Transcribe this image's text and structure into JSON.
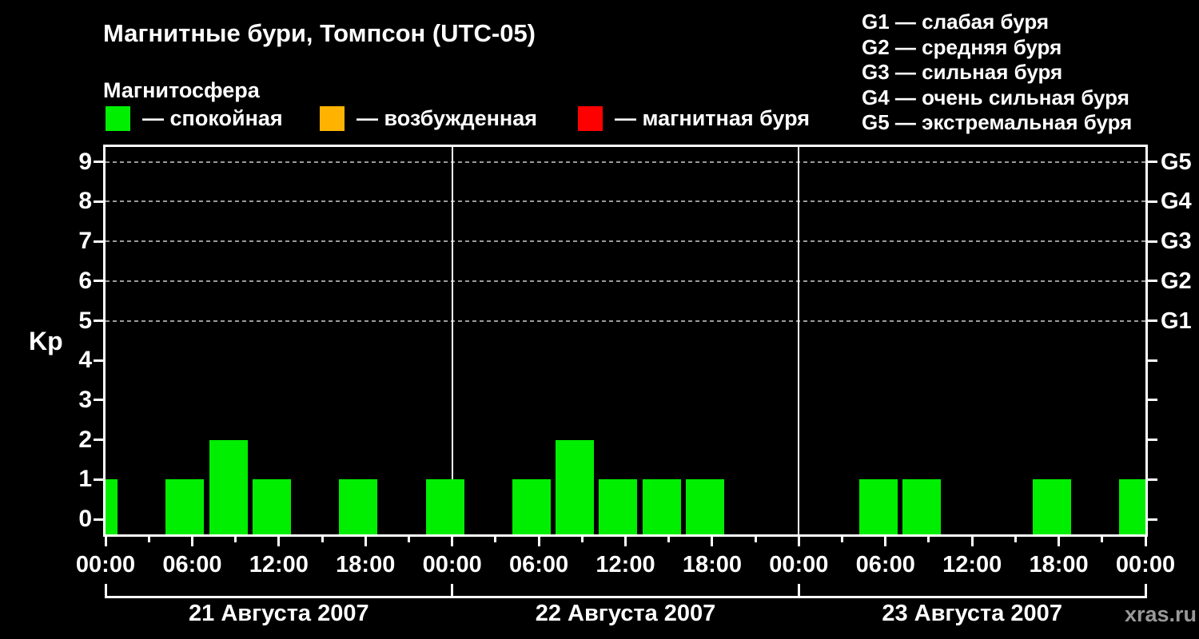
{
  "header": {
    "title": "Магнитные бури, Томпсон (UTC-05)",
    "subtitle": "Магнитосфера",
    "legend": [
      {
        "color": "#00ee00",
        "label": "— спокойная"
      },
      {
        "color": "#ffb300",
        "label": "— возбужденная"
      },
      {
        "color": "#ff0000",
        "label": "— магнитная буря"
      }
    ],
    "storm_scale": [
      "G1 — слабая буря",
      "G2 — средняя буря",
      "G3 — сильная буря",
      "G4 — очень сильная буря",
      "G5 — экстремальная буря"
    ]
  },
  "watermark": "xras.ru",
  "chart_data": {
    "type": "bar",
    "title": "Магнитные бури, Томпсон (UTC-05)",
    "ylabel": "Kp",
    "ylim": [
      0,
      9
    ],
    "y_tick_labels": [
      "0",
      "1",
      "2",
      "3",
      "4",
      "5",
      "6",
      "7",
      "8",
      "9"
    ],
    "grid_dashed_at_kp": [
      5,
      6,
      7,
      8,
      9
    ],
    "right_axis_labels": [
      {
        "kp": 5,
        "label": "G1"
      },
      {
        "kp": 6,
        "label": "G2"
      },
      {
        "kp": 7,
        "label": "G3"
      },
      {
        "kp": 8,
        "label": "G4"
      },
      {
        "kp": 9,
        "label": "G5"
      }
    ],
    "x_hours_total": 72,
    "x_minor_tick_step_hours": 3,
    "x_major_tick_step_hours": 6,
    "x_major_tick_labels": [
      "00:00",
      "06:00",
      "12:00",
      "18:00",
      "00:00",
      "06:00",
      "12:00",
      "18:00",
      "00:00",
      "06:00",
      "12:00",
      "18:00",
      "00:00"
    ],
    "bar_color": "#00ee00",
    "bar_width_hours": 2.66,
    "slot_centers_local": [
      "02:30",
      "05:30",
      "08:30",
      "11:30",
      "14:30",
      "17:30",
      "20:30",
      "23:30"
    ],
    "previous_day_tail": {
      "hour_center": -0.5,
      "kp": 1
    },
    "days": [
      {
        "label": "21 Августа 2007",
        "kp_values": [
          0,
          1,
          2,
          1,
          0,
          1,
          0,
          1
        ]
      },
      {
        "label": "22 Августа 2007",
        "kp_values": [
          0,
          1,
          2,
          1,
          1,
          1,
          0,
          0
        ]
      },
      {
        "label": "23 Августа 2007",
        "kp_values": [
          0,
          1,
          1,
          0,
          0,
          1,
          0,
          1
        ]
      }
    ]
  }
}
